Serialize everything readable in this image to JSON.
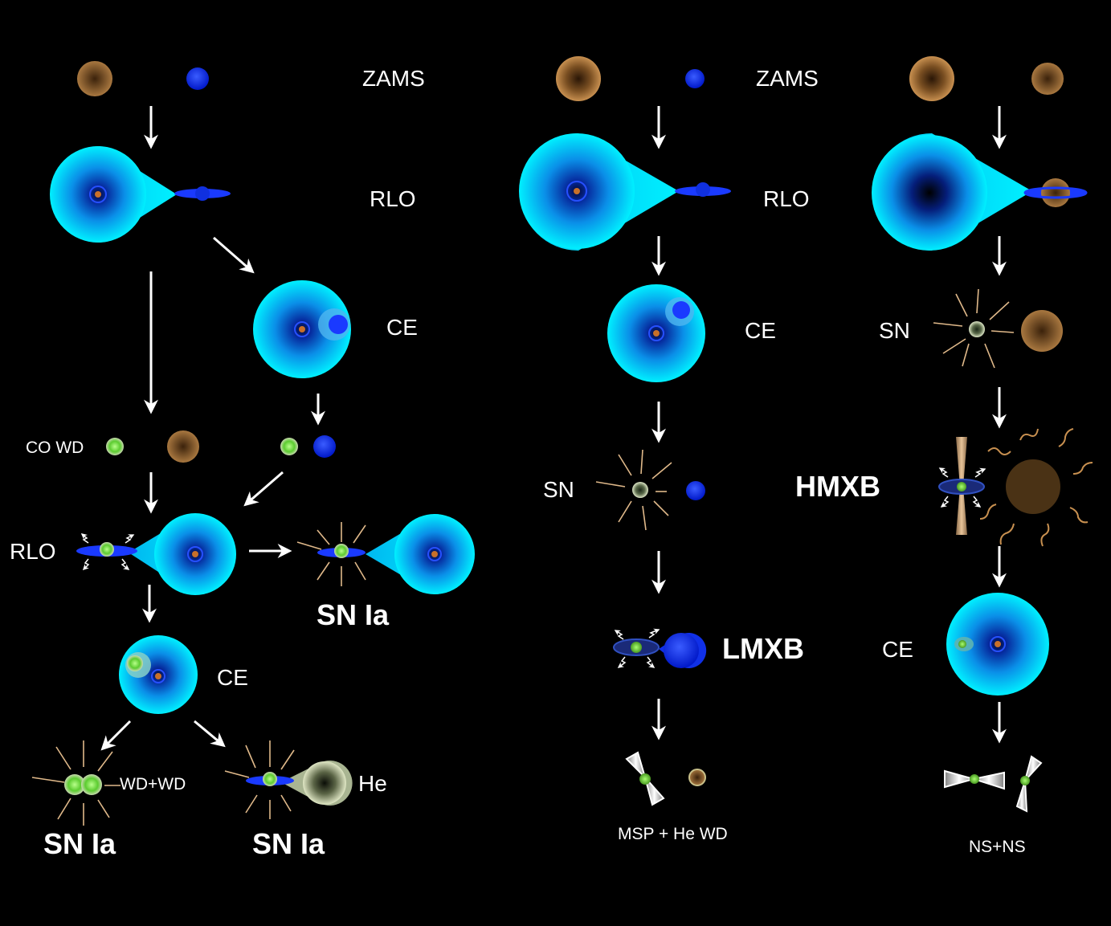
{
  "labels": {
    "zams": "ZAMS",
    "rlo": "RLO",
    "ce": "CE",
    "sn": "SN",
    "co_wd": "CO WD",
    "sn_ia": "SN Ia",
    "wd_wd": "WD+WD",
    "he": "He",
    "lmxb": "LMXB",
    "hmxb": "HMXB",
    "msp_he_wd": "MSP + He WD",
    "ns_ns": "NS+NS"
  },
  "colors": {
    "background": "#000000",
    "giant_envelope": "#00e5ff",
    "main_sequence_blue": "#0a2cff",
    "main_sequence_brown": "#8a5a2b",
    "white_dwarf": "#7ee84a",
    "supernova_rays": "#e0b98a",
    "arrow": "#ffffff"
  }
}
